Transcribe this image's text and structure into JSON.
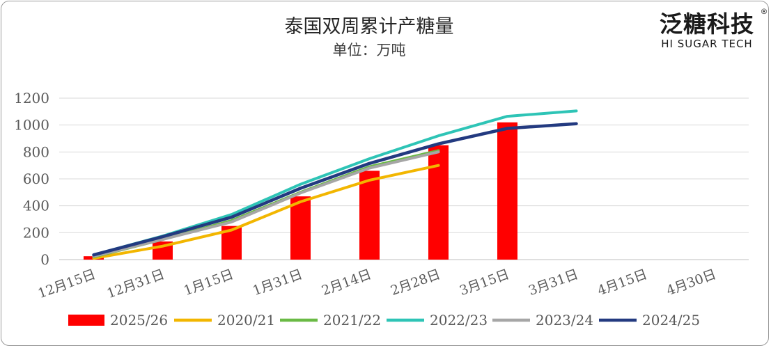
{
  "brand": {
    "name": "泛糖科技",
    "tagline": "HI SUGAR TECH",
    "registered": "®"
  },
  "chart_data": {
    "type": "bar+line",
    "title": "泰国双周累计产糖量",
    "subtitle": "单位：万吨",
    "xlabel": "",
    "ylabel": "",
    "ylim": [
      0,
      1200
    ],
    "yticks": [
      0,
      200,
      400,
      600,
      800,
      1000,
      1200
    ],
    "grid": true,
    "legend_position": "bottom",
    "categories": [
      "12月15日",
      "12月31日",
      "1月15日",
      "1月31日",
      "2月14日",
      "2月28日",
      "3月15日",
      "3月31日",
      "4月15日",
      "4月30日"
    ],
    "series": [
      {
        "name": "2025/26",
        "kind": "bar",
        "color": "#ff0000",
        "values": [
          25,
          135,
          250,
          470,
          660,
          850,
          1020,
          null,
          null,
          null
        ]
      },
      {
        "name": "2020/21",
        "kind": "line",
        "color": "#f2b600",
        "values": [
          10,
          100,
          220,
          430,
          590,
          700,
          null,
          null,
          null,
          null
        ]
      },
      {
        "name": "2021/22",
        "kind": "line",
        "color": "#6aba45",
        "values": [
          20,
          150,
          290,
          500,
          690,
          810,
          null,
          null,
          null,
          null
        ]
      },
      {
        "name": "2022/23",
        "kind": "line",
        "color": "#2ec4b6",
        "values": [
          35,
          175,
          335,
          560,
          750,
          920,
          1065,
          1105,
          null,
          null
        ]
      },
      {
        "name": "2023/24",
        "kind": "line",
        "color": "#a6a6a6",
        "values": [
          25,
          150,
          280,
          495,
          680,
          800,
          null,
          null,
          null,
          null
        ]
      },
      {
        "name": "2024/25",
        "kind": "line",
        "color": "#233a80",
        "values": [
          35,
          170,
          315,
          530,
          715,
          860,
          975,
          1010,
          null,
          null
        ]
      }
    ]
  }
}
